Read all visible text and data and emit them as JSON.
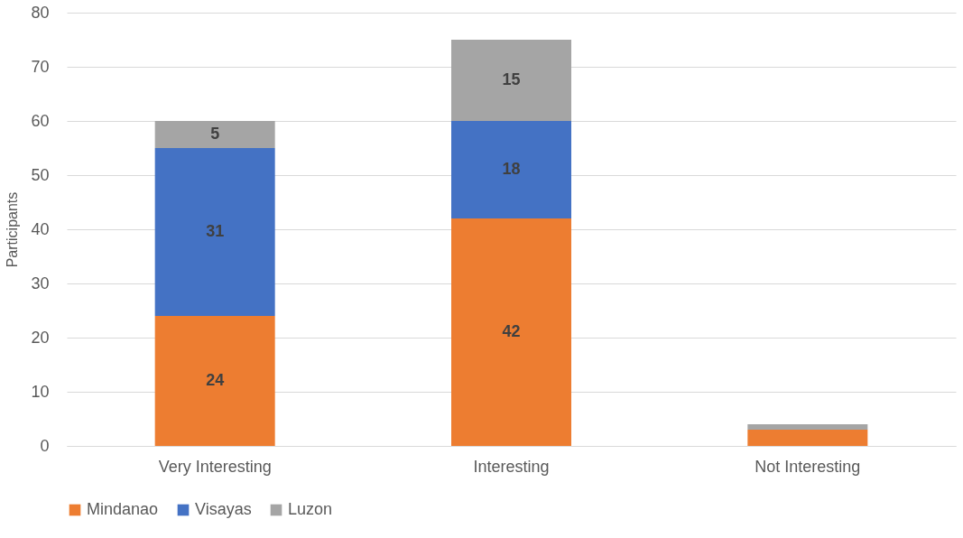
{
  "chart_data": {
    "type": "bar",
    "stacked": true,
    "ylabel": "Participants",
    "categories": [
      "Very Interesting",
      "Interesting",
      "Not Interesting"
    ],
    "series": [
      {
        "name": "Mindanao",
        "color": "#ed7d31",
        "values": [
          24,
          42,
          3
        ],
        "value_labels": [
          "24",
          "42",
          null
        ]
      },
      {
        "name": "Visayas",
        "color": "#4472c4",
        "values": [
          31,
          18,
          0
        ],
        "value_labels": [
          "31",
          "18",
          null
        ]
      },
      {
        "name": "Luzon",
        "color": "#a5a5a5",
        "values": [
          5,
          15,
          1
        ],
        "value_labels": [
          "5",
          "15",
          null
        ]
      }
    ],
    "ylim": [
      0,
      80
    ],
    "yticks": [
      0,
      10,
      20,
      30,
      40,
      50,
      60,
      70,
      80
    ],
    "grid": "y",
    "legend": "bottom"
  }
}
